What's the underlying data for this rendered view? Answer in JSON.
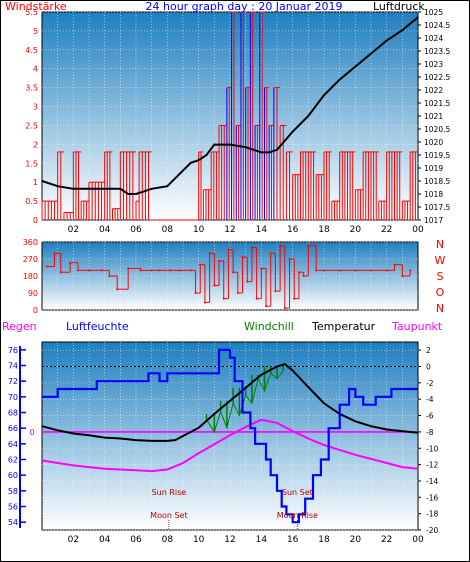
{
  "colors": {
    "plot_top": "#1f7fbf",
    "plot_bottom": "#ffffff",
    "windstarke": "#ff0000",
    "wind_blue": "#0000ff",
    "luftdruck": "#000000",
    "windrichtung": "#ff0000",
    "luftfeuchte": "#0000ff",
    "windchill": "#008000",
    "temperatur": "#000000",
    "taupunkt": "#ff00ff",
    "regen": "#ff00ff",
    "event_text": "#b00000",
    "axis_text_red": "#ff0000",
    "axis_text_blue": "#0000ff",
    "axis_text_black": "#000000"
  },
  "chart_data": [
    {
      "type": "line",
      "title": "24 hour graph day : 20 Januar 2019",
      "labels": {
        "left": "Windstärke",
        "right": "Luftdruck"
      },
      "x": {
        "range": [
          0,
          24
        ],
        "ticks": [
          "02",
          "04",
          "06",
          "08",
          "10",
          "12",
          "14",
          "16",
          "18",
          "20",
          "22",
          "00"
        ]
      },
      "y_left": {
        "range": [
          0,
          5.5
        ],
        "ticks": [
          "0",
          "0.5",
          "1",
          "1.5",
          "2",
          "2.5",
          "3",
          "3.5",
          "4",
          "4.5",
          "5",
          "5.5"
        ]
      },
      "y_right": {
        "range": [
          1017,
          1025
        ],
        "ticks": [
          "1017",
          "1017.5",
          "1018",
          "1018.5",
          "1019",
          "1019.5",
          "1020",
          "1020.5",
          "1021",
          "1021.5",
          "1022",
          "1022.5",
          "1023",
          "1023.5",
          "1024",
          "1024.5",
          "1025"
        ]
      },
      "series": [
        {
          "name": "Luftdruck",
          "axis": "right",
          "x": [
            0,
            1,
            2,
            3,
            4,
            5,
            5.5,
            6,
            7,
            8,
            9,
            9.5,
            10,
            10.5,
            11,
            12,
            13,
            14,
            14.5,
            15,
            16,
            17,
            18,
            19,
            20,
            21,
            22,
            23,
            24
          ],
          "y": [
            1018.5,
            1018.3,
            1018.2,
            1018.2,
            1018.2,
            1018.2,
            1018.0,
            1018.0,
            1018.2,
            1018.3,
            1018.9,
            1019.2,
            1019.3,
            1019.5,
            1019.9,
            1019.9,
            1019.8,
            1019.6,
            1019.6,
            1019.7,
            1020.4,
            1021.0,
            1021.8,
            1022.4,
            1022.9,
            1023.4,
            1023.9,
            1024.3,
            1024.8
          ]
        },
        {
          "name": "Windstärke",
          "axis": "left",
          "style": "step-bars",
          "x": [
            0,
            1,
            1.4,
            2,
            2.5,
            3,
            4,
            4.5,
            5,
            6,
            6.2,
            7,
            8,
            9,
            10,
            10.3,
            10.8,
            11.3,
            11.8,
            12.1,
            12.4,
            12.7,
            13.0,
            13.3,
            13.6,
            13.9,
            14.2,
            14.5,
            14.8,
            15.2,
            15.6,
            16.0,
            16.5,
            17,
            17.5,
            18,
            18.5,
            19,
            19.5,
            20,
            20.5,
            21,
            21.5,
            22,
            22.5,
            23,
            23.5,
            24
          ],
          "y": [
            0.5,
            1.8,
            0.2,
            1.8,
            0.5,
            1.0,
            1.8,
            0.3,
            1.8,
            0.5,
            1.8,
            0.0,
            0.0,
            0.0,
            1.8,
            0.8,
            1.8,
            2.5,
            3.5,
            5.5,
            2.5,
            5.5,
            3.5,
            5.5,
            2.5,
            5.5,
            3.5,
            2.5,
            3.5,
            2.5,
            1.8,
            1.2,
            1.8,
            1.8,
            1.2,
            1.8,
            0.5,
            1.8,
            1.8,
            0.8,
            1.8,
            1.8,
            0.5,
            1.8,
            1.8,
            0.5,
            1.8,
            1.8
          ]
        }
      ]
    },
    {
      "type": "scatter",
      "title": "",
      "labels": {
        "right": [
          "N",
          "W",
          "S",
          "O",
          "N"
        ]
      },
      "x": {
        "range": [
          0,
          24
        ]
      },
      "y": {
        "range": [
          0,
          360
        ],
        "ticks": [
          "0",
          "90",
          "180",
          "270",
          "360"
        ]
      },
      "series": [
        {
          "name": "Windrichtung",
          "x": [
            0.3,
            0.8,
            1.2,
            1.8,
            2.3,
            3.0,
            3.8,
            4.3,
            4.8,
            5.5,
            6.3,
            7.0,
            7.5,
            8.2,
            8.8,
            9.5,
            9.8,
            10.1,
            10.4,
            10.7,
            11.0,
            11.3,
            11.6,
            11.9,
            12.2,
            12.5,
            12.8,
            13.1,
            13.4,
            13.7,
            14.0,
            14.3,
            14.6,
            14.9,
            15.2,
            15.5,
            15.8,
            16.1,
            16.4,
            16.7,
            17.0,
            17.5,
            18.0,
            19.0,
            20.0,
            21.0,
            22.0,
            22.5,
            23.0,
            23.5
          ],
          "y": [
            230,
            300,
            200,
            250,
            210,
            210,
            210,
            180,
            110,
            220,
            210,
            210,
            210,
            210,
            210,
            210,
            90,
            240,
            40,
            300,
            130,
            260,
            60,
            320,
            200,
            90,
            280,
            150,
            330,
            60,
            220,
            20,
            300,
            100,
            340,
            10,
            270,
            60,
            200,
            180,
            340,
            210,
            210,
            210,
            210,
            210,
            210,
            240,
            180,
            210
          ]
        }
      ]
    },
    {
      "type": "line",
      "labels": {
        "regen": "Regen",
        "luftfeuchte": "Luftfeuchte",
        "windchill": "Windchill",
        "temperatur": "Temperatur",
        "taupunkt": "Taupunkt"
      },
      "x": {
        "range": [
          0,
          24
        ],
        "ticks": [
          "02",
          "04",
          "06",
          "08",
          "10",
          "12",
          "14",
          "16",
          "18",
          "20",
          "22",
          "00"
        ]
      },
      "y_left": {
        "range": [
          53,
          77
        ],
        "ticks": [
          "54",
          "56",
          "58",
          "60",
          "62",
          "64",
          "66",
          "68",
          "70",
          "72",
          "74",
          "76"
        ]
      },
      "y_right": {
        "range": [
          -20,
          3
        ],
        "ticks": [
          "-20",
          "-18",
          "-16",
          "-14",
          "-12",
          "-10",
          "-8",
          "-6",
          "-4",
          "-2",
          "0",
          "2"
        ]
      },
      "regen_marker": "0",
      "events": [
        {
          "label": "Sun Rise",
          "time": 8.1
        },
        {
          "label": "Moon Set",
          "time": 8.1
        },
        {
          "label": "Sun Set",
          "time": 16.3
        },
        {
          "label": "Moon Rise",
          "time": 16.3
        }
      ],
      "series": [
        {
          "name": "Luftfeuchte",
          "axis": "left",
          "step": true,
          "x": [
            0,
            1.0,
            2.0,
            3.5,
            5.0,
            6.8,
            7.5,
            8.0,
            8.5,
            9.3,
            10.3,
            11.3,
            12.0,
            12.3,
            12.8,
            13.3,
            13.6,
            14.0,
            14.3,
            14.6,
            15.0,
            15.3,
            15.6,
            16.0,
            16.4,
            16.8,
            17.3,
            17.8,
            18.3,
            19.0,
            19.6,
            20.0,
            20.5,
            21.3,
            22.3,
            23.3,
            24
          ],
          "y": [
            70,
            71,
            71,
            72,
            72,
            73,
            72,
            73,
            73,
            73,
            73,
            76,
            75,
            72,
            68,
            66,
            64,
            64,
            62,
            60,
            58,
            56,
            55,
            54,
            55,
            57,
            60,
            62,
            66,
            69,
            71,
            70,
            69,
            70,
            71,
            71,
            71
          ]
        },
        {
          "name": "Temperatur",
          "axis": "right",
          "x": [
            0,
            1,
            2,
            3,
            4,
            5,
            6,
            7,
            8,
            8.5,
            9,
            10,
            11,
            12,
            13,
            14,
            15,
            15.5,
            16,
            17,
            18,
            19,
            20,
            21,
            22,
            23,
            24
          ],
          "y": [
            -7.3,
            -7.8,
            -8.2,
            -8.4,
            -8.7,
            -8.8,
            -9.0,
            -9.1,
            -9.1,
            -9.0,
            -8.5,
            -7.5,
            -5.8,
            -4.2,
            -2.6,
            -1.0,
            0.0,
            0.3,
            -0.5,
            -2.5,
            -4.5,
            -5.8,
            -6.7,
            -7.3,
            -7.7,
            -7.9,
            -8.1
          ]
        },
        {
          "name": "Windchill",
          "axis": "right",
          "x": [
            10.5,
            11.0,
            11.4,
            11.8,
            12.2,
            12.6,
            13.0,
            13.4,
            13.8,
            14.2,
            14.6,
            15.0,
            15.4
          ],
          "y": [
            -6.5,
            -8.0,
            -5.5,
            -7.5,
            -4.5,
            -6.0,
            -3.5,
            -4.5,
            -1.5,
            -3.0,
            -0.8,
            -1.5,
            -0.5
          ]
        },
        {
          "name": "Taupunkt",
          "axis": "right",
          "x": [
            0,
            1,
            2,
            3,
            4,
            5,
            6,
            7,
            8,
            9,
            10,
            11,
            12,
            13,
            14,
            15,
            16,
            17,
            18,
            19,
            20,
            21,
            22,
            23,
            24
          ],
          "y": [
            -11.5,
            -11.8,
            -12.1,
            -12.3,
            -12.5,
            -12.6,
            -12.7,
            -12.8,
            -12.6,
            -11.8,
            -10.6,
            -9.5,
            -8.4,
            -7.4,
            -6.5,
            -6.9,
            -7.9,
            -8.8,
            -9.6,
            -10.2,
            -10.8,
            -11.3,
            -11.8,
            -12.3,
            -12.5
          ]
        }
      ]
    }
  ]
}
